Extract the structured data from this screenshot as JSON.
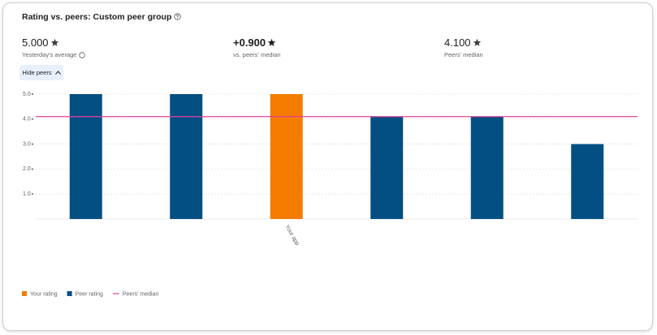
{
  "title": "Rating vs. peers: Custom peer group",
  "stats": [
    {
      "value": "5.000",
      "label": "Yesterday's average"
    },
    {
      "value": "+0.900",
      "label": "vs. peers' median"
    },
    {
      "value": "4.100",
      "label": "Peers' median"
    }
  ],
  "button": "Hide peers",
  "chart_data": {
    "type": "bar",
    "categories": [
      null,
      null,
      "Your app",
      null,
      null,
      null
    ],
    "series": [
      {
        "name": "Your rating",
        "color": "#f57c00",
        "values": [
          null,
          null,
          5,
          null,
          null,
          null
        ]
      },
      {
        "name": "Peer rating",
        "color": "#034f84",
        "values": [
          5,
          5,
          null,
          4.1,
          4.1,
          3
        ]
      }
    ],
    "median": {
      "name": "Peers' median",
      "value": 4.1,
      "color": "#e0409a"
    },
    "ylim": [
      0,
      5
    ],
    "yticks": [
      {
        "value": 1,
        "label": "1.0"
      },
      {
        "value": 2,
        "label": "2.0"
      },
      {
        "value": 3,
        "label": "3.0"
      },
      {
        "value": 4,
        "label": "4.0"
      },
      {
        "value": 5,
        "label": "5.0"
      }
    ],
    "grid": true
  }
}
